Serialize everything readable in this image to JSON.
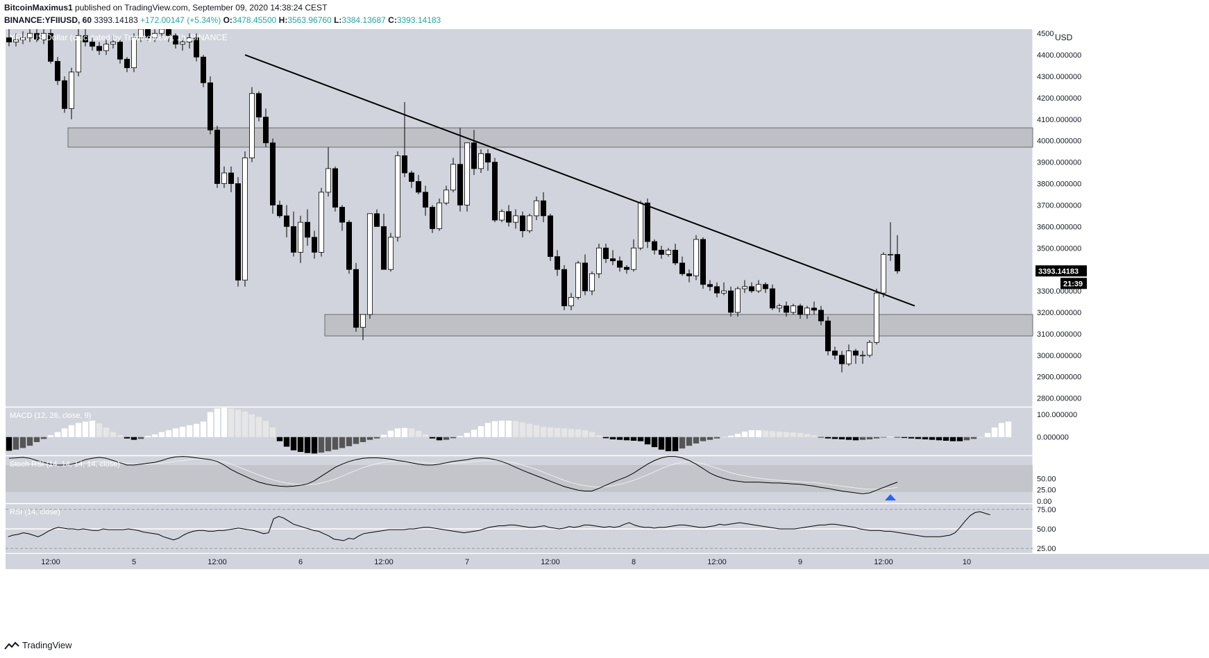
{
  "header": {
    "author": "BitcoinMaximus1",
    "published_text": "published on TradingView.com, September 09, 2020 14:38:24 CEST",
    "symbol": "BINANCE:YFIIUSD, 60",
    "last": "3393.14183",
    "change": "+172.00147 (+5.34%)",
    "o_label": "O:",
    "o": "3478.45500",
    "h_label": "H:",
    "h": "3563.96760",
    "l_label": "L:",
    "l": "3384.13687",
    "c_label": "C:",
    "c": "3393.14183"
  },
  "footer": {
    "brand": "TradingView",
    "logo_icon": "tradingview-logo-icon"
  },
  "chart_data": {
    "type": "candlestick",
    "title": "YFII / US Dollar (calculated by TradingView), 1h, BINANCE",
    "currency": "USD",
    "colors": {
      "background": "#d1d4dc",
      "up": "#ffffff",
      "down": "#000000",
      "trendline": "#000000",
      "zone": "#9b9b9b",
      "arrow": "#2962ff"
    },
    "price_axis_labels": [
      "4500",
      "4400.000000",
      "4300.000000",
      "4200.000000",
      "4100.000000",
      "4000.000000",
      "3900.000000",
      "3800.000000",
      "3700.000000",
      "3600.000000",
      "3500.000000",
      "3400.000000",
      "3300.000000",
      "3200.000000",
      "3100.000000",
      "3000.000000",
      "2900.000000",
      "2800.000000"
    ],
    "price_axis_values": [
      4500,
      4400,
      4300,
      4200,
      4100,
      4000,
      3900,
      3800,
      3700,
      3600,
      3500,
      3400,
      3300,
      3200,
      3100,
      3000,
      2900,
      2800
    ],
    "ylim": [
      2760,
      4520
    ],
    "last_price_label": "3393.14183",
    "countdown": "21:39",
    "time_labels": [
      "12:00",
      "5",
      "12:00",
      "6",
      "12:00",
      "7",
      "12:00",
      "8",
      "12:00",
      "9",
      "12:00",
      "10"
    ],
    "time_label_bar_index": [
      6,
      18,
      30,
      42,
      54,
      66,
      78,
      90,
      102,
      114,
      126,
      138
    ],
    "zones": [
      {
        "start_bar": 9,
        "end_bar": 147,
        "low": 3970,
        "high": 4060
      },
      {
        "start_bar": 46,
        "end_bar": 147,
        "low": 3090,
        "high": 3190
      }
    ],
    "trendline": {
      "start_bar": 34,
      "start_price": 4400,
      "end_bar": 130.5,
      "end_price": 3230
    },
    "candles": {
      "open": [
        4480,
        4460,
        4470,
        4480,
        4500,
        4470,
        4500,
        4370,
        4280,
        4150,
        4320,
        4490,
        4460,
        4440,
        4420,
        4450,
        4460,
        4380,
        4340,
        4480,
        4520,
        4480,
        4500,
        4520,
        4490,
        4450,
        4460,
        4480,
        4390,
        4270,
        4050,
        3800,
        3850,
        3800,
        3350,
        3920,
        4220,
        4110,
        3990,
        3700,
        3650,
        3600,
        3480,
        3620,
        3550,
        3480,
        3760,
        3870,
        3690,
        3620,
        3400,
        3130,
        3190,
        3660,
        3600,
        3400,
        3550,
        3930,
        3850,
        3810,
        3760,
        3690,
        3590,
        3710,
        3770,
        3890,
        3700,
        3990,
        3870,
        3940,
        3900,
        3630,
        3670,
        3620,
        3650,
        3580,
        3650,
        3720,
        3650,
        3460,
        3400,
        3230,
        3270,
        3430,
        3300,
        3380,
        3500,
        3450,
        3440,
        3410,
        3400,
        3500,
        3710,
        3530,
        3490,
        3470,
        3490,
        3430,
        3380,
        3370,
        3540,
        3330,
        3320,
        3290,
        3300,
        3200,
        3310,
        3320,
        3300,
        3330,
        3310,
        3220,
        3230,
        3200,
        3230,
        3190,
        3220,
        3210,
        3160,
        3020,
        3000,
        2960,
        3020,
        3000,
        3000,
        3060,
        3290,
        3470,
        3470
      ],
      "close": [
        4460,
        4470,
        4480,
        4500,
        4470,
        4500,
        4370,
        4280,
        4150,
        4320,
        4490,
        4460,
        4440,
        4420,
        4450,
        4460,
        4380,
        4340,
        4480,
        4520,
        4480,
        4500,
        4520,
        4490,
        4450,
        4460,
        4480,
        4390,
        4270,
        4050,
        3800,
        3850,
        3800,
        3350,
        3920,
        4220,
        4110,
        3990,
        3700,
        3650,
        3600,
        3480,
        3620,
        3550,
        3480,
        3760,
        3870,
        3690,
        3620,
        3400,
        3130,
        3190,
        3660,
        3600,
        3400,
        3550,
        3930,
        3850,
        3810,
        3760,
        3690,
        3590,
        3710,
        3770,
        3890,
        3700,
        3990,
        3870,
        3940,
        3900,
        3630,
        3670,
        3620,
        3650,
        3580,
        3650,
        3720,
        3650,
        3460,
        3400,
        3230,
        3270,
        3430,
        3300,
        3380,
        3500,
        3450,
        3440,
        3410,
        3400,
        3500,
        3710,
        3530,
        3490,
        3470,
        3490,
        3430,
        3380,
        3370,
        3540,
        3330,
        3320,
        3290,
        3300,
        3200,
        3310,
        3320,
        3300,
        3330,
        3310,
        3220,
        3230,
        3200,
        3230,
        3190,
        3220,
        3210,
        3160,
        3020,
        3000,
        2960,
        3020,
        3000,
        3000,
        3060,
        3290,
        3470,
        3470,
        3393
      ],
      "high": [
        4520,
        4500,
        4510,
        4520,
        4530,
        4520,
        4530,
        4390,
        4300,
        4340,
        4520,
        4520,
        4480,
        4460,
        4480,
        4490,
        4470,
        4390,
        4500,
        4540,
        4520,
        4520,
        4540,
        4530,
        4500,
        4480,
        4500,
        4500,
        4400,
        4300,
        4070,
        3880,
        3880,
        3830,
        3950,
        4250,
        4230,
        4150,
        4010,
        3720,
        3700,
        3670,
        3650,
        3680,
        3580,
        3780,
        3970,
        3880,
        3700,
        3630,
        3430,
        3160,
        3220,
        3680,
        3660,
        3570,
        3950,
        4180,
        3860,
        3840,
        3790,
        3700,
        3730,
        3790,
        3920,
        4060,
        3990,
        4050,
        3960,
        3960,
        3920,
        3680,
        3700,
        3680,
        3670,
        3660,
        3740,
        3760,
        3660,
        3490,
        3420,
        3290,
        3440,
        3470,
        3390,
        3520,
        3520,
        3490,
        3460,
        3420,
        3540,
        3720,
        3730,
        3540,
        3510,
        3500,
        3520,
        3460,
        3400,
        3560,
        3550,
        3350,
        3340,
        3340,
        3320,
        3320,
        3350,
        3340,
        3350,
        3340,
        3330,
        3240,
        3250,
        3240,
        3240,
        3230,
        3250,
        3230,
        3180,
        3040,
        3020,
        3050,
        3030,
        3020,
        3070,
        3310,
        3480,
        3620,
        3560
      ],
      "low": [
        4440,
        4440,
        4450,
        4460,
        4460,
        4450,
        4360,
        4260,
        4130,
        4100,
        4300,
        4440,
        4420,
        4400,
        4400,
        4430,
        4360,
        4320,
        4320,
        4460,
        4460,
        4460,
        4480,
        4460,
        4430,
        4420,
        4430,
        4370,
        4250,
        4030,
        3780,
        3780,
        3760,
        3320,
        3320,
        3900,
        4090,
        3970,
        3660,
        3640,
        3550,
        3460,
        3430,
        3510,
        3450,
        3460,
        3740,
        3670,
        3580,
        3380,
        3110,
        3070,
        3170,
        3640,
        3480,
        3390,
        3530,
        3830,
        3780,
        3750,
        3650,
        3570,
        3580,
        3700,
        3760,
        3670,
        3670,
        3840,
        3850,
        3860,
        3620,
        3620,
        3600,
        3590,
        3550,
        3570,
        3630,
        3620,
        3440,
        3370,
        3210,
        3210,
        3260,
        3280,
        3280,
        3360,
        3430,
        3420,
        3390,
        3380,
        3390,
        3490,
        3500,
        3470,
        3450,
        3460,
        3420,
        3370,
        3340,
        3350,
        3310,
        3300,
        3270,
        3280,
        3180,
        3180,
        3290,
        3290,
        3290,
        3290,
        3210,
        3200,
        3180,
        3190,
        3170,
        3170,
        3190,
        3140,
        3000,
        2980,
        2920,
        2950,
        2960,
        2960,
        2990,
        3050,
        3270,
        3440,
        3380
      ]
    },
    "macd": {
      "label": "MACD (12, 26, close, 9)",
      "axis_labels": [
        "100.000000",
        "0.000000"
      ],
      "axis_values": [
        100,
        0
      ],
      "ylim": [
        -80,
        130
      ],
      "histogram": [
        -60,
        -55,
        -48,
        -38,
        -22,
        -8,
        8,
        22,
        38,
        52,
        62,
        68,
        72,
        60,
        42,
        22,
        8,
        -6,
        -12,
        -8,
        5,
        12,
        22,
        30,
        38,
        45,
        52,
        58,
        68,
        110,
        125,
        128,
        125,
        120,
        112,
        100,
        88,
        70,
        42,
        -18,
        -42,
        -58,
        -65,
        -70,
        -72,
        -68,
        -62,
        -55,
        -48,
        -40,
        -30,
        -22,
        -12,
        -6,
        10,
        28,
        38,
        40,
        38,
        28,
        12,
        -6,
        -14,
        -12,
        -5,
        5,
        18,
        32,
        48,
        62,
        70,
        72,
        72,
        70,
        65,
        58,
        52,
        45,
        42,
        40,
        38,
        36,
        34,
        30,
        22,
        8,
        -5,
        -10,
        -12,
        -14,
        -16,
        -18,
        -32,
        -44,
        -55,
        -62,
        -62,
        -50,
        -38,
        -28,
        -18,
        -12,
        -6,
        0,
        6,
        14,
        24,
        30,
        30,
        28,
        26,
        24,
        22,
        20,
        18,
        14,
        8,
        -2,
        -6,
        -8,
        -10,
        -12,
        -14,
        -12,
        -10,
        -6,
        -2,
        2,
        -2,
        -4,
        -6,
        -8,
        -10,
        -12,
        -14,
        -16,
        -18,
        -18,
        -14,
        -8,
        0,
        18,
        42,
        62,
        68
      ]
    },
    "stoch_rsi": {
      "label": "Stoch RSI (14, 14, 14, 14, close)",
      "axis_labels": [
        "50.00",
        "25.00",
        "0.00"
      ],
      "axis_values": [
        50,
        25,
        0
      ],
      "band": [
        20,
        80
      ],
      "ylim": [
        -5,
        100
      ],
      "k": [
        95,
        96,
        97,
        95,
        90,
        86,
        82,
        80,
        80,
        82,
        86,
        92,
        95,
        97,
        95,
        90,
        85,
        80,
        80,
        82,
        84,
        86,
        90,
        95,
        98,
        99,
        98,
        96,
        94,
        92,
        88,
        80,
        70,
        62,
        55,
        48,
        42,
        38,
        35,
        33,
        32,
        33,
        35,
        38,
        45,
        55,
        65,
        75,
        82,
        88,
        92,
        95,
        96,
        96,
        95,
        93,
        90,
        88,
        85,
        82,
        80,
        80,
        82,
        85,
        88,
        90,
        92,
        95,
        96,
        95,
        92,
        88,
        82,
        75,
        68,
        62,
        56,
        50,
        44,
        38,
        32,
        28,
        24,
        22,
        22,
        28,
        35,
        42,
        48,
        54,
        62,
        72,
        82,
        90,
        96,
        99,
        99,
        96,
        90,
        82,
        72,
        62,
        55,
        50,
        46,
        44,
        42,
        42,
        42,
        41,
        40,
        40,
        39,
        38,
        37,
        35,
        33,
        30,
        28,
        25,
        22,
        20,
        18,
        16,
        18,
        24,
        30,
        36,
        42
      ],
      "d": [
        80,
        81,
        82,
        82,
        82,
        81,
        80,
        80,
        80,
        81,
        82,
        84,
        86,
        88,
        88,
        87,
        86,
        84,
        83,
        82,
        82,
        83,
        84,
        86,
        88,
        90,
        92,
        93,
        93,
        92,
        90,
        87,
        82,
        76,
        70,
        64,
        58,
        52,
        47,
        43,
        40,
        38,
        37,
        36,
        37,
        40,
        44,
        49,
        55,
        62,
        68,
        74,
        79,
        83,
        86,
        88,
        89,
        89,
        88,
        87,
        85,
        84,
        83,
        83,
        84,
        85,
        86,
        88,
        89,
        90,
        90,
        89,
        87,
        84,
        80,
        75,
        70,
        64,
        58,
        52,
        46,
        41,
        37,
        34,
        32,
        31,
        32,
        34,
        37,
        41,
        46,
        52,
        58,
        65,
        72,
        78,
        83,
        86,
        87,
        86,
        83,
        78,
        73,
        68,
        63,
        59,
        56,
        53,
        51,
        49,
        47,
        46,
        45,
        44,
        43,
        42,
        41,
        39,
        37,
        35,
        33,
        31,
        29,
        27,
        26,
        26,
        27,
        28,
        30
      ]
    },
    "rsi": {
      "label": "RSI (14, close)",
      "axis_labels": [
        "75.00",
        "50.00",
        "25.00"
      ],
      "axis_values": [
        75,
        50,
        25
      ],
      "ylim": [
        18,
        82
      ],
      "values": [
        40,
        42,
        43,
        45,
        44,
        42,
        40,
        43,
        47,
        50,
        52,
        51,
        50,
        50,
        49,
        50,
        49,
        48,
        48,
        50,
        49,
        49,
        49,
        49,
        50,
        49,
        48,
        46,
        45,
        44,
        43,
        40,
        38,
        36,
        38,
        42,
        45,
        47,
        48,
        48,
        47,
        47,
        48,
        48,
        49,
        50,
        51,
        50,
        49,
        48,
        46,
        44,
        45,
        63,
        66,
        64,
        60,
        56,
        54,
        52,
        50,
        48,
        47,
        44,
        41,
        37,
        36,
        35,
        38,
        37,
        41,
        44,
        45,
        46,
        47,
        48,
        49,
        49,
        49,
        49,
        50,
        50,
        51,
        52,
        52,
        51,
        50,
        49,
        48,
        47,
        46,
        45,
        46,
        47,
        48,
        50,
        52,
        53,
        54,
        54,
        55,
        55,
        54,
        53,
        52,
        52,
        53,
        54,
        52,
        51,
        50,
        51,
        53,
        52,
        53,
        55,
        55,
        54,
        53,
        52,
        53,
        52,
        53,
        56,
        58,
        55,
        53,
        52,
        52,
        51,
        52,
        52,
        53,
        54,
        55,
        55,
        54,
        53,
        52,
        52,
        53,
        54,
        56,
        55,
        56,
        57,
        58,
        57,
        56,
        55,
        54,
        53,
        52,
        51,
        50,
        50,
        50,
        50,
        51,
        52,
        53,
        54,
        55,
        55,
        56,
        56,
        55,
        54,
        53,
        52,
        50,
        49,
        48,
        48,
        48,
        47,
        47,
        46,
        45,
        44,
        43,
        42,
        41,
        40,
        40,
        40,
        40,
        41,
        42,
        45,
        52,
        60,
        67,
        71,
        72,
        70,
        68
      ]
    }
  }
}
